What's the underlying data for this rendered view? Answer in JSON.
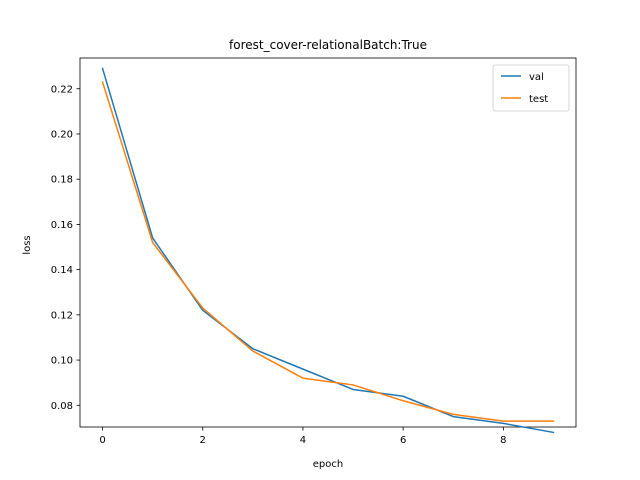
{
  "chart_data": {
    "type": "line",
    "title": "forest_cover-relationalBatch:True",
    "xlabel": "epoch",
    "ylabel": "loss",
    "xlim": [
      -0.45,
      9.45
    ],
    "ylim": [
      0.0704,
      0.2336
    ],
    "xticks": [
      0,
      2,
      4,
      6,
      8
    ],
    "yticks": [
      0.08,
      0.1,
      0.12,
      0.14,
      0.16,
      0.18,
      0.2,
      0.22
    ],
    "ytick_labels": [
      "0.08",
      "0.10",
      "0.12",
      "0.14",
      "0.16",
      "0.18",
      "0.20",
      "0.22"
    ],
    "grid": false,
    "legend_position": "top-right",
    "x": [
      0,
      1,
      2,
      3,
      4,
      5,
      6,
      7,
      8,
      9
    ],
    "series": [
      {
        "name": "val",
        "color": "#1f77b4",
        "values": [
          0.229,
          0.154,
          0.122,
          0.105,
          0.096,
          0.087,
          0.084,
          0.075,
          0.072,
          0.068
        ]
      },
      {
        "name": "test",
        "color": "#ff7f0e",
        "values": [
          0.223,
          0.152,
          0.123,
          0.104,
          0.092,
          0.089,
          0.082,
          0.076,
          0.073,
          0.073
        ]
      }
    ]
  }
}
